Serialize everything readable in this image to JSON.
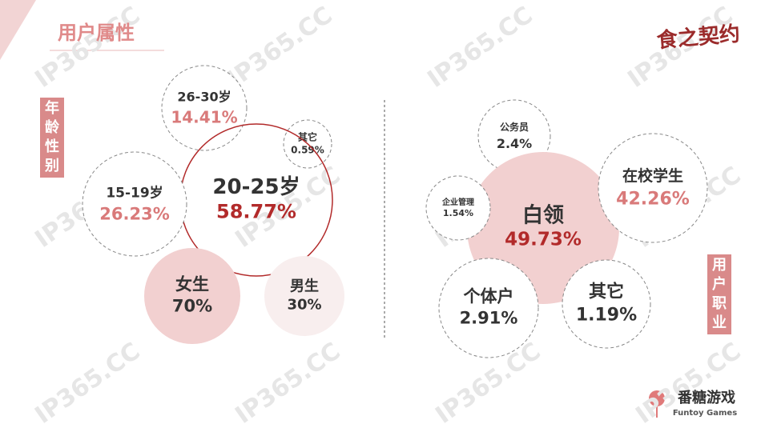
{
  "header": {
    "title": "用户属性",
    "logo": "食之契约"
  },
  "age_gender": {
    "label": "年龄性别",
    "bubbles": [
      {
        "name": "26-30岁",
        "value": "14.41%"
      },
      {
        "name": "其它",
        "value": "0.59%"
      },
      {
        "name": "20-25岁",
        "value": "58.77%"
      },
      {
        "name": "15-19岁",
        "value": "26.23%"
      },
      {
        "name": "女生",
        "value": "70%"
      },
      {
        "name": "男生",
        "value": "30%"
      }
    ]
  },
  "occupation": {
    "label": "用户职业",
    "bubbles": [
      {
        "name": "公务员",
        "value": "2.4%"
      },
      {
        "name": "白领",
        "value": "49.73%"
      },
      {
        "name": "在校学生",
        "value": "42.26%"
      },
      {
        "name": "企业管理",
        "value": "1.54%"
      },
      {
        "name": "个体户",
        "value": "2.91%"
      },
      {
        "name": "其它",
        "value": "1.19%"
      }
    ]
  },
  "footer": {
    "brand": "番糖游戏",
    "brand_en": "Funtoy Games"
  },
  "watermark": "IP365.CC"
}
